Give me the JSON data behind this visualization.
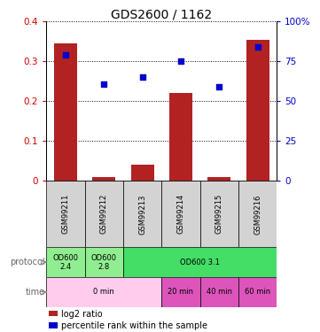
{
  "title": "GDS2600 / 1162",
  "samples": [
    "GSM99211",
    "GSM99212",
    "GSM99213",
    "GSM99214",
    "GSM99215",
    "GSM99216"
  ],
  "log2_ratio": [
    0.345,
    0.01,
    0.04,
    0.22,
    0.01,
    0.355
  ],
  "percentile_rank_pct": [
    79,
    61,
    65,
    75,
    59,
    84
  ],
  "bar_color": "#b22222",
  "dot_color": "#0000cc",
  "ylim_left": [
    0,
    0.4
  ],
  "ylim_right": [
    0,
    100
  ],
  "yticks_left": [
    0,
    0.1,
    0.2,
    0.3,
    0.4
  ],
  "yticks_right": [
    0,
    25,
    50,
    75,
    100
  ],
  "ytick_labels_left": [
    "0",
    "0.1",
    "0.2",
    "0.3",
    "0.4"
  ],
  "ytick_labels_right": [
    "0",
    "25",
    "50",
    "75",
    "100%"
  ],
  "label_color_left": "#cc0000",
  "label_color_right": "#0000cc",
  "sample_box_color": "#d3d3d3",
  "bar_width": 0.6,
  "prot_data": [
    [
      0,
      1,
      "#90ee90",
      "OD600\n2.4"
    ],
    [
      1,
      2,
      "#90ee90",
      "OD600\n2.8"
    ],
    [
      2,
      6,
      "#44dd66",
      "OD600 3.1"
    ]
  ],
  "time_data": [
    [
      0,
      3,
      "#ffccee",
      "0 min"
    ],
    [
      3,
      4,
      "#dd55bb",
      "20 min"
    ],
    [
      4,
      5,
      "#dd55bb",
      "40 min"
    ],
    [
      5,
      6,
      "#dd55bb",
      "60 min"
    ]
  ]
}
